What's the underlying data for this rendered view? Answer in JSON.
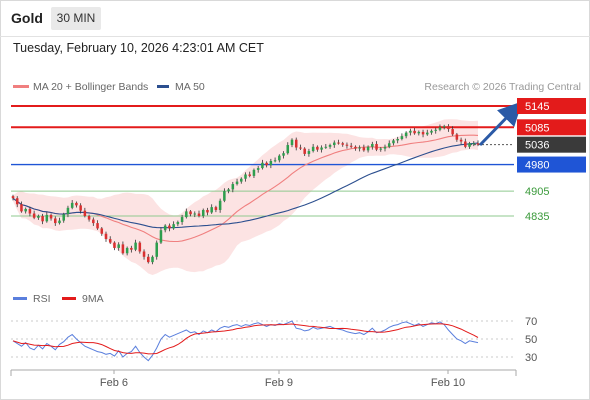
{
  "header": {
    "symbol": "Gold",
    "timeframe": "30 MIN"
  },
  "timestamp": "Tuesday, February 10, 2026 4:23:01 AM CET",
  "legend": {
    "ma20": "MA 20 + Bollinger Bands",
    "ma50": "MA 50",
    "copyright": "Research © 2026 Trading Central"
  },
  "rsi_legend": {
    "rsi": "RSI",
    "ma": "9MA"
  },
  "colors": {
    "up": "#2e9e4e",
    "down": "#d93030",
    "resistance": "#e31b1b",
    "support_blue": "#1f55d6",
    "support_green": "#3b9a3b",
    "ma20": "#f07f7f",
    "ma50": "#2c4f8f",
    "band": "#fbdada",
    "rsi": "#5a7fdd",
    "rsi_ma": "#e31b1b",
    "arrow": "#2b5aa6",
    "current": "#3a3a3a"
  },
  "chart_data": [
    {
      "type": "candlestick",
      "title": "Gold",
      "timeframe": "30 MIN",
      "x_labels": [
        "Feb 6",
        "Feb 9",
        "Feb 10"
      ],
      "ylim": [
        4690,
        5170
      ],
      "price_levels": [
        {
          "label": "5145",
          "value": 5145,
          "kind": "resistance"
        },
        {
          "label": "5085",
          "value": 5085,
          "kind": "resistance"
        },
        {
          "label": "5036",
          "value": 5036,
          "kind": "current"
        },
        {
          "label": "4980",
          "value": 4980,
          "kind": "pivot"
        },
        {
          "label": "4905",
          "value": 4905,
          "kind": "support"
        },
        {
          "label": "4835",
          "value": 4835,
          "kind": "support"
        }
      ],
      "closes": [
        4885,
        4868,
        4848,
        4855,
        4842,
        4830,
        4835,
        4820,
        4838,
        4828,
        4815,
        4822,
        4840,
        4858,
        4872,
        4865,
        4850,
        4835,
        4825,
        4815,
        4800,
        4785,
        4770,
        4760,
        4745,
        4755,
        4730,
        4745,
        4740,
        4760,
        4735,
        4720,
        4705,
        4720,
        4760,
        4795,
        4808,
        4800,
        4812,
        4818,
        4832,
        4848,
        4840,
        4842,
        4835,
        4852,
        4845,
        4860,
        4852,
        4878,
        4905,
        4910,
        4925,
        4932,
        4940,
        4952,
        4948,
        4965,
        4970,
        4985,
        4978,
        4990,
        4992,
        5005,
        5012,
        5035,
        5050,
        5028,
        5025,
        5010,
        5018,
        5030,
        5022,
        5028,
        5030,
        5035,
        5042,
        5040,
        5036,
        5033,
        5030,
        5025,
        5028,
        5020,
        5030,
        5038,
        5022,
        5025,
        5030,
        5040,
        5048,
        5052,
        5060,
        5070,
        5075,
        5068,
        5072,
        5065,
        5070,
        5075,
        5078,
        5085,
        5088,
        5080,
        5065,
        5050,
        5045,
        5030,
        5040,
        5040,
        5036
      ]
    },
    {
      "type": "line",
      "title": "RSI",
      "series": [
        {
          "name": "RSI"
        },
        {
          "name": "9MA"
        }
      ],
      "ylim": [
        20,
        80
      ],
      "y_ticks": [
        70,
        50,
        30
      ],
      "x_labels": [
        "Feb 6",
        "Feb 9",
        "Feb 10"
      ],
      "rsi_values": [
        48,
        45,
        42,
        46,
        40,
        38,
        43,
        39,
        45,
        42,
        38,
        44,
        47,
        52,
        55,
        50,
        46,
        42,
        40,
        38,
        36,
        35,
        33,
        34,
        31,
        37,
        30,
        34,
        36,
        42,
        35,
        30,
        26,
        32,
        40,
        50,
        55,
        52,
        54,
        56,
        58,
        60,
        57,
        58,
        55,
        59,
        57,
        60,
        58,
        62,
        64,
        63,
        65,
        66,
        64,
        66,
        65,
        67,
        68,
        66,
        64,
        66,
        65,
        67,
        66,
        68,
        70,
        62,
        61,
        59,
        60,
        63,
        61,
        62,
        63,
        64,
        62,
        61,
        60,
        58,
        57,
        56,
        57,
        55,
        58,
        62,
        57,
        58,
        60,
        63,
        65,
        66,
        68,
        69,
        67,
        65,
        67,
        64,
        66,
        68,
        67,
        69,
        66,
        60,
        55,
        50,
        48,
        45,
        48,
        47,
        46
      ]
    }
  ]
}
